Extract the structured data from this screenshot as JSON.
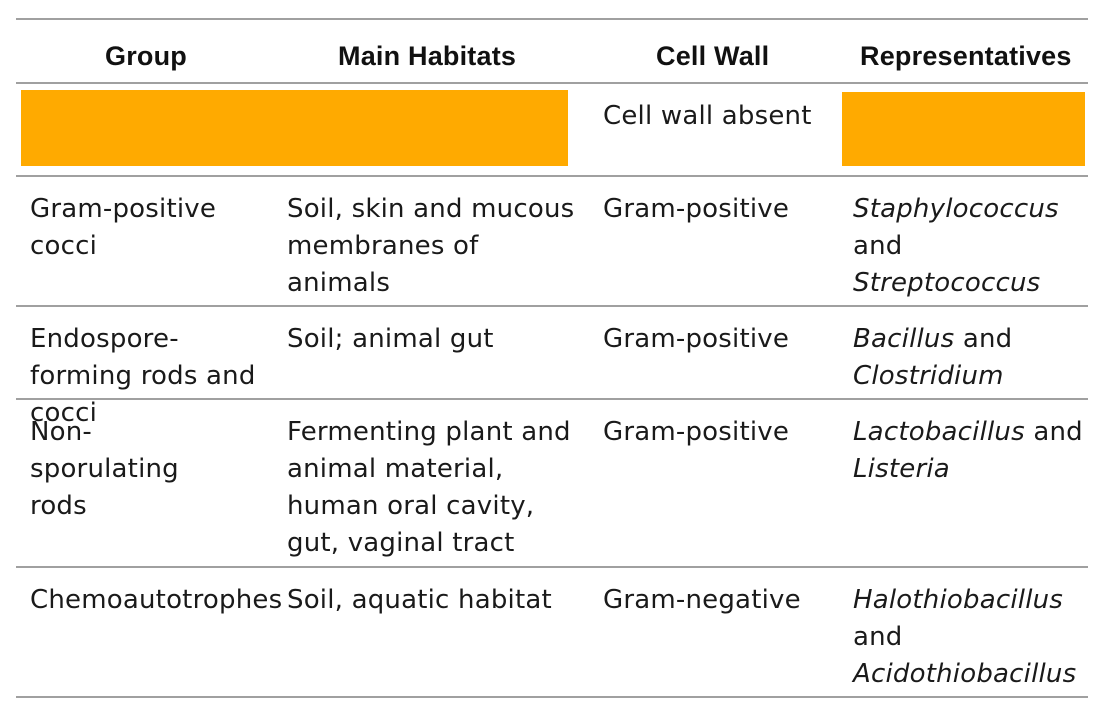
{
  "table": {
    "headers": [
      "Group",
      "Main Habitats",
      "Cell Wall",
      "Representatives"
    ],
    "rows": [
      {
        "group": "",
        "habitats": "",
        "cell_wall": "Cell wall absent",
        "rep_a": "",
        "rep_join": "",
        "rep_b": "",
        "redacted": true
      },
      {
        "group": "Gram-positive cocci",
        "habitats": "Soil, skin and mucous membranes of animals",
        "cell_wall": "Gram-positive",
        "rep_a": "Staphylococcus",
        "rep_join": "and",
        "rep_b": "Streptococcus"
      },
      {
        "group": "Endospore-forming rods and cocci",
        "habitats": "Soil; animal gut",
        "cell_wall": "Gram-positive",
        "rep_a": "Bacillus",
        "rep_join": "and",
        "rep_b": "Clostridium"
      },
      {
        "group": "Non-sporulating rods",
        "habitats": "Fermenting plant and animal material, human oral cavity, gut, vaginal tract",
        "cell_wall": "Gram-positive",
        "rep_a": "Lactobacillus",
        "rep_join": "and",
        "rep_b": "Listeria"
      },
      {
        "group": "Chemoautotrophes",
        "habitats": "Soil, aquatic habitat",
        "cell_wall": "Gram-negative",
        "rep_a": "Halothiobacillus",
        "rep_join": "and",
        "rep_b": "Acidothiobacillus"
      }
    ]
  },
  "colors": {
    "redaction": "#FFAA00",
    "rule": "#a0a0a0"
  }
}
